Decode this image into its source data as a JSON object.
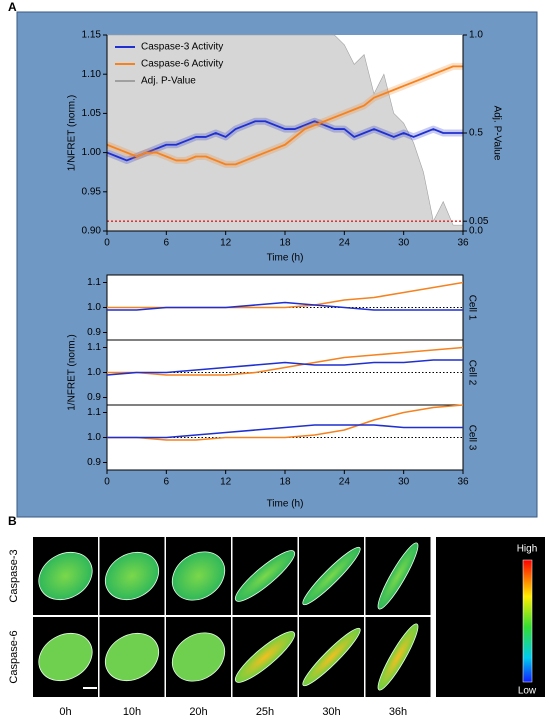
{
  "panel_labels": [
    "A",
    "B"
  ],
  "chart_data": [
    {
      "type": "line",
      "xlabel": "Time (h)",
      "ylabel": "1/NFRET (norm.)",
      "y2label": "Adj. P-Value",
      "x": [
        0,
        1,
        2,
        3,
        4,
        5,
        6,
        7,
        8,
        9,
        10,
        11,
        12,
        13,
        14,
        15,
        16,
        17,
        18,
        19,
        20,
        21,
        22,
        23,
        24,
        25,
        26,
        27,
        28,
        29,
        30,
        31,
        32,
        33,
        34,
        35,
        36
      ],
      "xlim": [
        0,
        36
      ],
      "xticks": [
        0,
        6,
        12,
        18,
        24,
        30,
        36
      ],
      "ylim": [
        0.9,
        1.15
      ],
      "yticks": [
        {
          "value": 0.9,
          "label": "0.90"
        },
        0.95,
        {
          "value": 1,
          "label": "1.00"
        },
        1.05,
        {
          "value": 1.1,
          "label": "1.10"
        },
        1.15
      ],
      "y2lim": [
        0,
        1
      ],
      "y2ticks": [
        {
          "value": 0,
          "label": "0.0"
        },
        0.05,
        0.5,
        {
          "value": 1,
          "label": "1.0"
        }
      ],
      "legend": "upper left",
      "threshold_line": {
        "value": 0.05,
        "axis": "y2",
        "color": "#e02020"
      },
      "series": [
        {
          "name": "Caspase-3 Activity",
          "color": "#1f2fd0",
          "values": [
            1.0,
            0.995,
            0.99,
            0.995,
            1.0,
            1.005,
            1.01,
            1.01,
            1.015,
            1.02,
            1.02,
            1.025,
            1.02,
            1.03,
            1.035,
            1.04,
            1.04,
            1.035,
            1.03,
            1.03,
            1.035,
            1.04,
            1.035,
            1.03,
            1.03,
            1.02,
            1.025,
            1.03,
            1.025,
            1.02,
            1.025,
            1.02,
            1.025,
            1.03,
            1.025,
            1.025,
            1.025
          ]
        },
        {
          "name": "Caspase-6 Activity",
          "color": "#f5821f",
          "values": [
            1.01,
            1.005,
            1.0,
            0.995,
            1.0,
            1.0,
            0.995,
            0.99,
            0.99,
            0.995,
            0.995,
            0.99,
            0.985,
            0.985,
            0.99,
            0.995,
            1.0,
            1.005,
            1.01,
            1.02,
            1.03,
            1.035,
            1.04,
            1.045,
            1.05,
            1.055,
            1.06,
            1.07,
            1.075,
            1.08,
            1.085,
            1.09,
            1.095,
            1.1,
            1.105,
            1.11,
            1.11
          ]
        },
        {
          "name": "Adj. P-Value",
          "color": "#a0a0a0",
          "fill": "#d6d6d6",
          "axis": "y2",
          "values": [
            1,
            1,
            1,
            1,
            1,
            1,
            1,
            1,
            1,
            1,
            1,
            1,
            1,
            1,
            1,
            1,
            1,
            1,
            1,
            1,
            1,
            1,
            1,
            1,
            0.95,
            0.85,
            0.9,
            0.7,
            0.8,
            0.6,
            0.55,
            0.45,
            0.3,
            0.05,
            0.15,
            0.03,
            0.03
          ]
        }
      ]
    },
    {
      "type": "line",
      "xlabel": "Time (h)",
      "ylabel": "1/NFRET (norm.)",
      "x": [
        0,
        3,
        6,
        9,
        12,
        15,
        18,
        21,
        24,
        27,
        30,
        33,
        36
      ],
      "xlim": [
        0,
        36
      ],
      "xticks": [
        0,
        6,
        12,
        18,
        24,
        30,
        36
      ],
      "ylim": [
        0.87,
        1.13
      ],
      "yticks": [
        0.9,
        {
          "value": 1,
          "label": "1.0"
        },
        1.1
      ],
      "reference_line": 1,
      "panels": [
        {
          "name": "Cell 1",
          "series": [
            {
              "color": "#f5821f",
              "values": [
                1.0,
                1.0,
                1.0,
                1.0,
                1.0,
                1.0,
                1.0,
                1.01,
                1.03,
                1.04,
                1.06,
                1.08,
                1.1
              ]
            },
            {
              "color": "#1f2fd0",
              "values": [
                0.99,
                0.99,
                1.0,
                1.0,
                1.0,
                1.01,
                1.02,
                1.01,
                1.0,
                0.99,
                0.99,
                0.99,
                0.99
              ]
            }
          ]
        },
        {
          "name": "Cell 2",
          "series": [
            {
              "color": "#f5821f",
              "values": [
                1.0,
                1.0,
                0.99,
                0.99,
                0.99,
                1.0,
                1.02,
                1.04,
                1.06,
                1.07,
                1.08,
                1.09,
                1.1
              ]
            },
            {
              "color": "#1f2fd0",
              "values": [
                0.99,
                1.0,
                1.0,
                1.01,
                1.02,
                1.03,
                1.04,
                1.03,
                1.03,
                1.04,
                1.04,
                1.05,
                1.05
              ]
            }
          ]
        },
        {
          "name": "Cell 3",
          "series": [
            {
              "color": "#f5821f",
              "values": [
                1.0,
                1.0,
                0.99,
                0.99,
                1.0,
                1.0,
                1.0,
                1.01,
                1.03,
                1.07,
                1.1,
                1.12,
                1.13
              ]
            },
            {
              "color": "#1f2fd0",
              "values": [
                1.0,
                1.0,
                1.0,
                1.01,
                1.02,
                1.03,
                1.04,
                1.05,
                1.05,
                1.05,
                1.04,
                1.04,
                1.04
              ]
            }
          ]
        }
      ]
    }
  ],
  "image_grid": {
    "rows": [
      "Caspase-3",
      "Caspase-6"
    ],
    "columns": [
      "0h",
      "10h",
      "20h",
      "25h",
      "30h",
      "36h"
    ],
    "colorbar": {
      "high": "High",
      "low": "Low"
    }
  }
}
